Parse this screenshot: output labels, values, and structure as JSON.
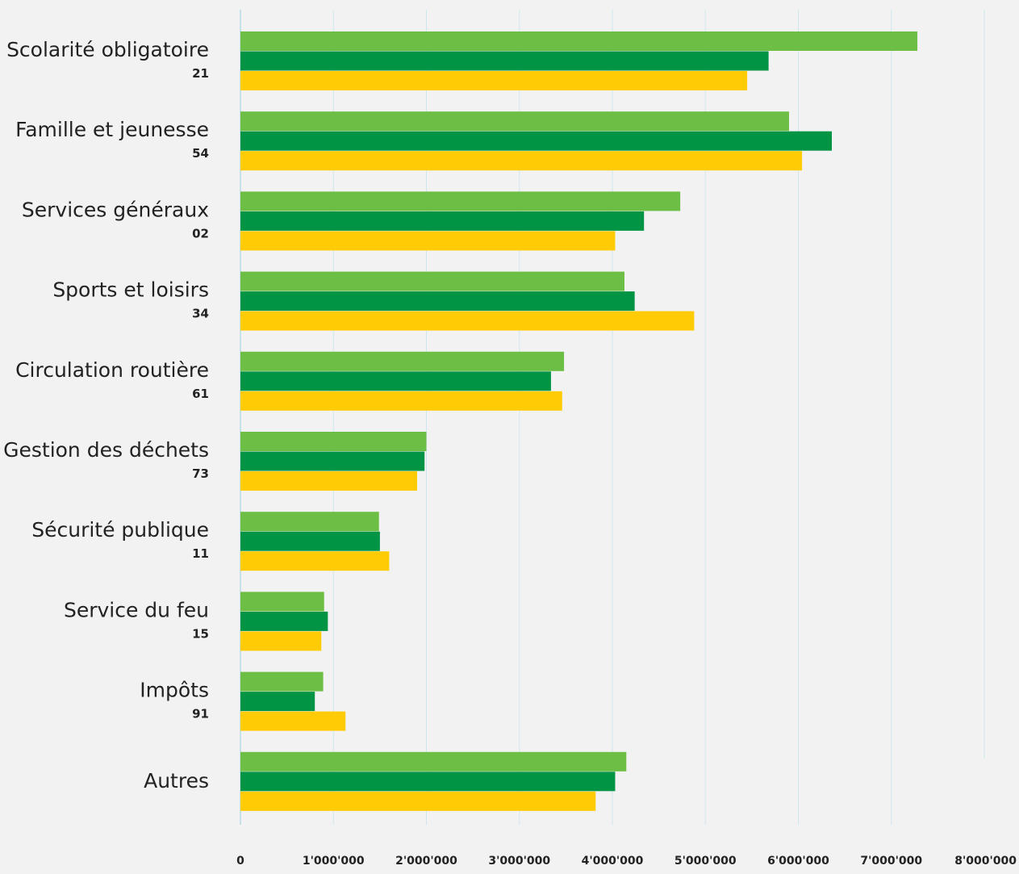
{
  "chart_data": {
    "type": "bar",
    "orientation": "horizontal",
    "title": "",
    "xlabel": "",
    "ylabel": "",
    "xlim": [
      0,
      8000000
    ],
    "xticks": [
      0,
      1000000,
      2000000,
      3000000,
      4000000,
      5000000,
      6000000,
      7000000,
      8000000
    ],
    "xtick_labels": [
      "0",
      "1'000'000",
      "2'000'000",
      "3'000'000",
      "4'000'000",
      "5'000'000",
      "6'000'000",
      "7'000'000",
      "8'000'000"
    ],
    "grid": "vertical",
    "categories": [
      {
        "label": "Scolarité obligatoire",
        "code": "21"
      },
      {
        "label": "Famille et jeunesse",
        "code": "54"
      },
      {
        "label": "Services généraux",
        "code": "02"
      },
      {
        "label": "Sports et loisirs",
        "code": "34"
      },
      {
        "label": "Circulation routière",
        "code": "61"
      },
      {
        "label": "Gestion des déchets",
        "code": "73"
      },
      {
        "label": "Sécurité publique",
        "code": "11"
      },
      {
        "label": "Service du feu",
        "code": "15"
      },
      {
        "label": "Impôts",
        "code": "91"
      },
      {
        "label": "Autres",
        "code": ""
      }
    ],
    "series": [
      {
        "color": "#6dbe45",
        "values": [
          7280000,
          5900000,
          4730000,
          4130000,
          3480000,
          2000000,
          1490000,
          900000,
          890000,
          4150000
        ]
      },
      {
        "color": "#009444",
        "values": [
          5680000,
          6360000,
          4340000,
          4240000,
          3340000,
          1980000,
          1500000,
          940000,
          800000,
          4030000
        ]
      },
      {
        "color": "#ffcb05",
        "values": [
          5450000,
          6040000,
          4030000,
          4880000,
          3460000,
          1900000,
          1600000,
          870000,
          1130000,
          3820000
        ]
      }
    ],
    "colors": {
      "grid": "#cfe6ef",
      "axis": "#b8dbe8",
      "text": "#222222",
      "background": "#f2f2f2"
    }
  }
}
